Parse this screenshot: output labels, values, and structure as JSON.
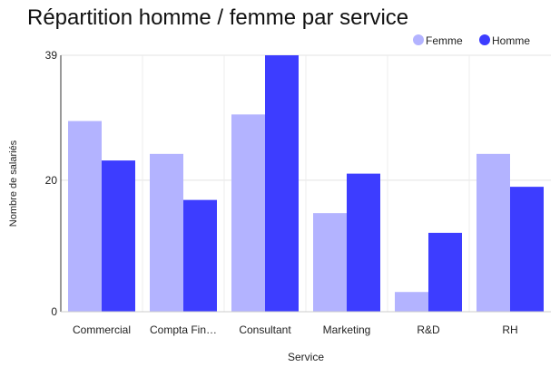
{
  "chart_data": {
    "type": "bar",
    "title": "Répartition homme / femme par service",
    "xlabel": "Service",
    "ylabel": "Nombre de salariés",
    "categories": [
      "Commercial",
      "Compta Fin…",
      "Consultant",
      "Marketing",
      "R&D",
      "RH"
    ],
    "series": [
      {
        "name": "Femme",
        "color": "#b3b3ff",
        "values": [
          29,
          24,
          30,
          15,
          3,
          24
        ]
      },
      {
        "name": "Homme",
        "color": "#3d3dff",
        "values": [
          23,
          17,
          39,
          21,
          12,
          19
        ]
      }
    ],
    "ylim": [
      0,
      39
    ],
    "yticks": [
      "0",
      "20",
      "39"
    ],
    "ytick_values": [
      0,
      20,
      39
    ],
    "grid": true,
    "legend_position": "top-right"
  }
}
